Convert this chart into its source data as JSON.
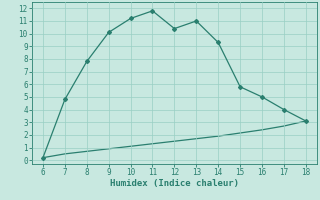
{
  "x": [
    6,
    7,
    8,
    9,
    10,
    11,
    12,
    13,
    14,
    15,
    16,
    17,
    18
  ],
  "y_main": [
    0.2,
    4.8,
    7.8,
    10.1,
    11.2,
    11.8,
    10.4,
    11.0,
    9.3,
    5.8,
    5.0,
    4.0,
    3.1
  ],
  "y_base": [
    0.2,
    0.5,
    0.7,
    0.9,
    1.1,
    1.3,
    1.5,
    1.7,
    1.9,
    2.15,
    2.4,
    2.7,
    3.1
  ],
  "line_color": "#2a7f6f",
  "bg_color": "#c8e8e0",
  "grid_color": "#9acfc4",
  "xlabel": "Humidex (Indice chaleur)",
  "xlim": [
    5.5,
    18.5
  ],
  "ylim": [
    -0.3,
    12.5
  ],
  "xticks": [
    6,
    7,
    8,
    9,
    10,
    11,
    12,
    13,
    14,
    15,
    16,
    17,
    18
  ],
  "yticks": [
    0,
    1,
    2,
    3,
    4,
    5,
    6,
    7,
    8,
    9,
    10,
    11,
    12
  ],
  "marker": "D",
  "marker_size": 2.0,
  "line_width": 0.9,
  "font_name": "monospace",
  "tick_fontsize": 5.5,
  "xlabel_fontsize": 6.5
}
